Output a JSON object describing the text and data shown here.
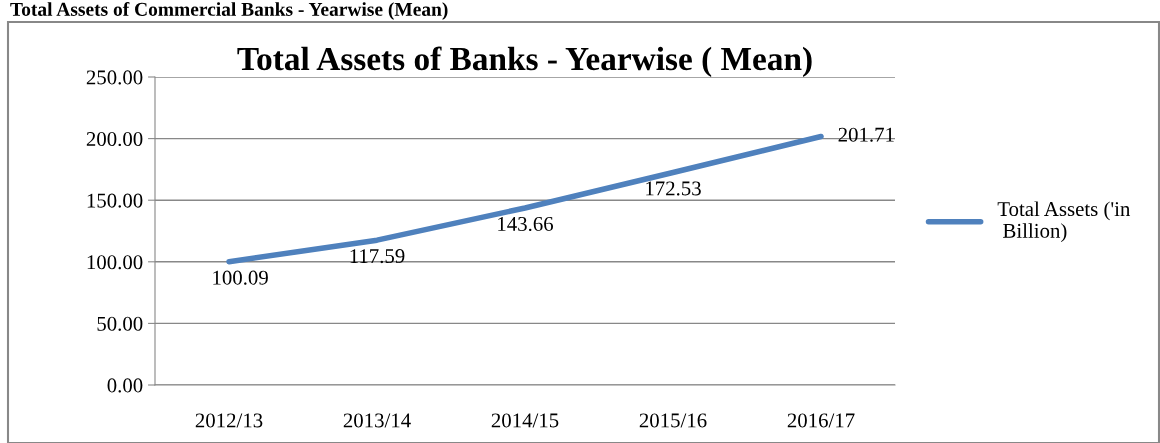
{
  "chart_data": {
    "type": "line",
    "title": "Total Assets of Banks - Yearwise ( Mean)",
    "annotations": [
      "Total Assets of Commercial Banks - Yearwise (Mean)"
    ],
    "categories": [
      "2012/13",
      "2013/14",
      "2014/15",
      "2015/16",
      "2016/17"
    ],
    "series": [
      {
        "name": "Total Assets ('in Billion)",
        "color": "#4f81bd",
        "values": [
          100.09,
          117.59,
          143.66,
          172.53,
          201.71
        ]
      }
    ],
    "ylim": [
      0,
      250
    ],
    "yticks": [
      {
        "value": 0,
        "label": "0.00"
      },
      {
        "value": 50,
        "label": "50.00"
      },
      {
        "value": 100,
        "label": "100.00"
      },
      {
        "value": 150,
        "label": "150.00"
      },
      {
        "value": 200,
        "label": "200.00"
      },
      {
        "value": 250,
        "label": "250.00"
      }
    ],
    "grid": "y",
    "legend": "right",
    "marker": "none",
    "line_style": "solid",
    "data_labels": true
  }
}
